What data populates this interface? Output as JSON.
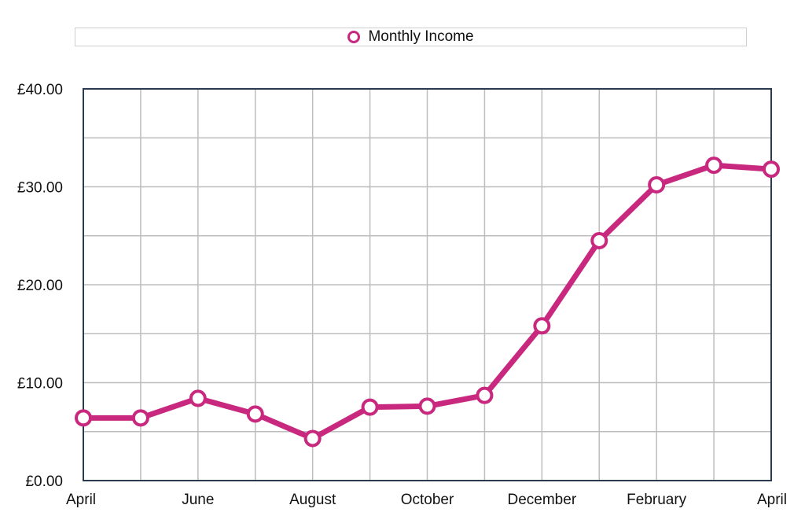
{
  "legend": {
    "series_name": "Monthly Income"
  },
  "colors": {
    "series": "#c8297f",
    "grid": "#bdbdbd",
    "frame": "#2b3a4f",
    "marker_fill": "#ffffff"
  },
  "chart_data": {
    "type": "line",
    "title": "",
    "xlabel": "",
    "ylabel": "",
    "ylim": [
      0,
      40
    ],
    "y_ticks": [
      "£0.00",
      "£10.00",
      "£20.00",
      "£30.00",
      "£40.00"
    ],
    "y_tick_values": [
      0,
      10,
      20,
      30,
      40
    ],
    "x_tick_labels": [
      "April",
      "",
      "June",
      "",
      "August",
      "",
      "October",
      "",
      "December",
      "",
      "February",
      "",
      "April"
    ],
    "grid": true,
    "legend_position": "top",
    "series": [
      {
        "name": "Monthly Income",
        "values": [
          6.4,
          6.4,
          8.4,
          6.8,
          4.3,
          7.5,
          7.6,
          8.7,
          15.8,
          24.5,
          30.2,
          32.2,
          31.8
        ]
      }
    ]
  }
}
